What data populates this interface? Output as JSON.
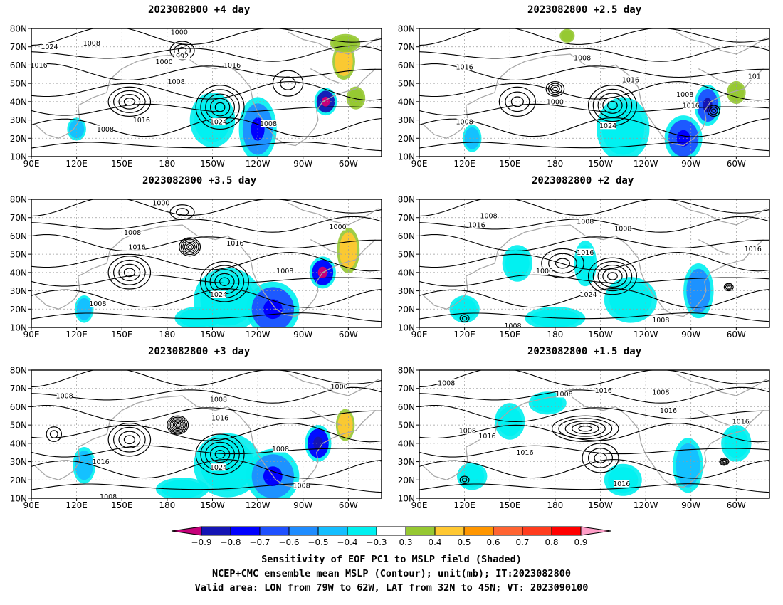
{
  "panels": [
    {
      "title": "2023082800  +4 day",
      "blobs": [
        {
          "lon": 210,
          "lat": 30,
          "rx": 12,
          "ry": 12,
          "v": -0.35
        },
        {
          "lon": 240,
          "lat": 25,
          "rx": 10,
          "ry": 14,
          "v": -0.6
        },
        {
          "lon": 285,
          "lat": 40,
          "rx": 6,
          "ry": 6,
          "v": -0.85
        },
        {
          "lon": 297,
          "lat": 62,
          "rx": 6,
          "ry": 8,
          "v": 0.45
        },
        {
          "lon": 298,
          "lat": 72,
          "rx": 8,
          "ry": 4,
          "v": 0.35
        },
        {
          "lon": 120,
          "lat": 25,
          "rx": 5,
          "ry": 5,
          "v": -0.45
        },
        {
          "lon": 305,
          "lat": 42,
          "rx": 5,
          "ry": 5,
          "v": 0.35
        }
      ],
      "centers": [
        {
          "lon": 155,
          "lat": 40,
          "rx": 14,
          "ry": 8,
          "n": 4
        },
        {
          "lon": 215,
          "lat": 37,
          "rx": 16,
          "ry": 12,
          "n": 5
        },
        {
          "lon": 190,
          "lat": 68,
          "rx": 8,
          "ry": 5,
          "n": 3
        },
        {
          "lon": 260,
          "lat": 50,
          "rx": 10,
          "ry": 7,
          "n": 2
        }
      ],
      "labels": [
        {
          "text": "1000",
          "lon": 188,
          "lat": 78
        },
        {
          "text": "1024",
          "lon": 102,
          "lat": 70
        },
        {
          "text": "1008",
          "lon": 130,
          "lat": 72
        },
        {
          "text": "1016",
          "lon": 95,
          "lat": 60
        },
        {
          "text": "1000",
          "lon": 178,
          "lat": 62
        },
        {
          "text": "992",
          "lon": 190,
          "lat": 65
        },
        {
          "text": "1008",
          "lon": 186,
          "lat": 51
        },
        {
          "text": "1016",
          "lon": 223,
          "lat": 60
        },
        {
          "text": "1016",
          "lon": 163,
          "lat": 30
        },
        {
          "text": "1024",
          "lon": 214,
          "lat": 29
        },
        {
          "text": "1008",
          "lon": 247,
          "lat": 28
        },
        {
          "text": "1008",
          "lon": 139,
          "lat": 25
        }
      ]
    },
    {
      "title": "2023082800  +2.5 day",
      "blobs": [
        {
          "lon": 225,
          "lat": 25,
          "rx": 14,
          "ry": 14,
          "v": -0.4
        },
        {
          "lon": 265,
          "lat": 20,
          "rx": 10,
          "ry": 10,
          "v": -0.65
        },
        {
          "lon": 281,
          "lat": 38,
          "rx": 7,
          "ry": 9,
          "v": -0.7
        },
        {
          "lon": 300,
          "lat": 45,
          "rx": 5,
          "ry": 5,
          "v": 0.35
        },
        {
          "lon": 125,
          "lat": 20,
          "rx": 5,
          "ry": 6,
          "v": -0.45
        },
        {
          "lon": 188,
          "lat": 76,
          "rx": 4,
          "ry": 3,
          "v": 0.35
        }
      ],
      "centers": [
        {
          "lon": 218,
          "lat": 38,
          "rx": 16,
          "ry": 11,
          "n": 5
        },
        {
          "lon": 180,
          "lat": 47,
          "rx": 6,
          "ry": 4,
          "n": 4
        },
        {
          "lon": 155,
          "lat": 40,
          "rx": 12,
          "ry": 8,
          "n": 3
        },
        {
          "lon": 285,
          "lat": 35,
          "rx": 4,
          "ry": 3,
          "n": 3
        }
      ],
      "labels": [
        {
          "text": "1008",
          "lon": 198,
          "lat": 64
        },
        {
          "text": "1016",
          "lon": 120,
          "lat": 59
        },
        {
          "text": "1016",
          "lon": 230,
          "lat": 52
        },
        {
          "text": "1000",
          "lon": 180,
          "lat": 40
        },
        {
          "text": "1008",
          "lon": 266,
          "lat": 44
        },
        {
          "text": "1016",
          "lon": 270,
          "lat": 38
        },
        {
          "text": "1008",
          "lon": 120,
          "lat": 29
        },
        {
          "text": "1024",
          "lon": 215,
          "lat": 27
        },
        {
          "text": "101",
          "lon": 312,
          "lat": 54
        }
      ]
    },
    {
      "title": "2023082800  +3.5 day",
      "blobs": [
        {
          "lon": 220,
          "lat": 25,
          "rx": 18,
          "ry": 14,
          "v": -0.4
        },
        {
          "lon": 250,
          "lat": 20,
          "rx": 14,
          "ry": 12,
          "v": -0.65
        },
        {
          "lon": 283,
          "lat": 40,
          "rx": 7,
          "ry": 7,
          "v": -0.8
        },
        {
          "lon": 300,
          "lat": 52,
          "rx": 6,
          "ry": 10,
          "v": 0.45
        },
        {
          "lon": 125,
          "lat": 20,
          "rx": 5,
          "ry": 6,
          "v": -0.45
        },
        {
          "lon": 200,
          "lat": 15,
          "rx": 12,
          "ry": 5,
          "v": -0.35
        }
      ],
      "centers": [
        {
          "lon": 155,
          "lat": 40,
          "rx": 14,
          "ry": 9,
          "n": 4
        },
        {
          "lon": 218,
          "lat": 35,
          "rx": 16,
          "ry": 11,
          "n": 5
        },
        {
          "lon": 195,
          "lat": 54,
          "rx": 7,
          "ry": 5,
          "n": 6
        },
        {
          "lon": 190,
          "lat": 73,
          "rx": 8,
          "ry": 4,
          "n": 2
        }
      ],
      "labels": [
        {
          "text": "1000",
          "lon": 176,
          "lat": 78
        },
        {
          "text": "1008",
          "lon": 157,
          "lat": 62
        },
        {
          "text": "1016",
          "lon": 160,
          "lat": 54
        },
        {
          "text": "1016",
          "lon": 225,
          "lat": 56
        },
        {
          "text": "1000",
          "lon": 293,
          "lat": 65
        },
        {
          "text": "1008",
          "lon": 258,
          "lat": 41
        },
        {
          "text": "1024",
          "lon": 214,
          "lat": 28
        },
        {
          "text": "1008",
          "lon": 134,
          "lat": 23
        }
      ]
    },
    {
      "title": "2023082800  +2 day",
      "blobs": [
        {
          "lon": 155,
          "lat": 45,
          "rx": 8,
          "ry": 8,
          "v": -0.4
        },
        {
          "lon": 200,
          "lat": 45,
          "rx": 6,
          "ry": 10,
          "v": -0.35
        },
        {
          "lon": 230,
          "lat": 25,
          "rx": 14,
          "ry": 10,
          "v": -0.4
        },
        {
          "lon": 275,
          "lat": 30,
          "rx": 8,
          "ry": 12,
          "v": -0.55
        },
        {
          "lon": 120,
          "lat": 20,
          "rx": 8,
          "ry": 6,
          "v": -0.35
        },
        {
          "lon": 180,
          "lat": 15,
          "rx": 16,
          "ry": 5,
          "v": -0.35
        }
      ],
      "centers": [
        {
          "lon": 218,
          "lat": 38,
          "rx": 16,
          "ry": 10,
          "n": 5
        },
        {
          "lon": 185,
          "lat": 45,
          "rx": 14,
          "ry": 8,
          "n": 3
        },
        {
          "lon": 295,
          "lat": 32,
          "rx": 3,
          "ry": 2,
          "n": 3
        },
        {
          "lon": 120,
          "lat": 15,
          "rx": 3,
          "ry": 2,
          "n": 2
        }
      ],
      "labels": [
        {
          "text": "1008",
          "lon": 136,
          "lat": 71
        },
        {
          "text": "1016",
          "lon": 128,
          "lat": 66
        },
        {
          "text": "1008",
          "lon": 200,
          "lat": 68
        },
        {
          "text": "1008",
          "lon": 225,
          "lat": 64
        },
        {
          "text": "1016",
          "lon": 200,
          "lat": 51
        },
        {
          "text": "1000",
          "lon": 173,
          "lat": 41
        },
        {
          "text": "1016",
          "lon": 311,
          "lat": 53
        },
        {
          "text": "1024",
          "lon": 202,
          "lat": 28
        },
        {
          "text": "1008",
          "lon": 152,
          "lat": 11
        },
        {
          "text": "1008",
          "lon": 250,
          "lat": 14
        }
      ]
    },
    {
      "title": "2023082800  +3 day",
      "blobs": [
        {
          "lon": 220,
          "lat": 28,
          "rx": 18,
          "ry": 14,
          "v": -0.4
        },
        {
          "lon": 250,
          "lat": 22,
          "rx": 14,
          "ry": 12,
          "v": -0.6
        },
        {
          "lon": 280,
          "lat": 40,
          "rx": 7,
          "ry": 8,
          "v": -0.75
        },
        {
          "lon": 298,
          "lat": 50,
          "rx": 5,
          "ry": 7,
          "v": 0.45
        },
        {
          "lon": 125,
          "lat": 28,
          "rx": 6,
          "ry": 8,
          "v": -0.5
        },
        {
          "lon": 190,
          "lat": 15,
          "rx": 14,
          "ry": 5,
          "v": -0.35
        }
      ],
      "centers": [
        {
          "lon": 155,
          "lat": 42,
          "rx": 14,
          "ry": 9,
          "n": 4
        },
        {
          "lon": 215,
          "lat": 34,
          "rx": 16,
          "ry": 11,
          "n": 5
        },
        {
          "lon": 187,
          "lat": 50,
          "rx": 7,
          "ry": 5,
          "n": 7
        },
        {
          "lon": 105,
          "lat": 45,
          "rx": 5,
          "ry": 4,
          "n": 2
        }
      ],
      "labels": [
        {
          "text": "1008",
          "lon": 112,
          "lat": 66
        },
        {
          "text": "1008",
          "lon": 214,
          "lat": 64
        },
        {
          "text": "1016",
          "lon": 215,
          "lat": 54
        },
        {
          "text": "1000",
          "lon": 294,
          "lat": 71
        },
        {
          "text": "1008",
          "lon": 255,
          "lat": 37
        },
        {
          "text": "1016",
          "lon": 136,
          "lat": 30
        },
        {
          "text": "1024",
          "lon": 214,
          "lat": 27
        },
        {
          "text": "1008",
          "lon": 269,
          "lat": 17
        },
        {
          "text": "1008",
          "lon": 141,
          "lat": 11
        }
      ]
    },
    {
      "title": "2023082800  +1.5 day",
      "blobs": [
        {
          "lon": 150,
          "lat": 52,
          "rx": 8,
          "ry": 8,
          "v": -0.35
        },
        {
          "lon": 225,
          "lat": 20,
          "rx": 10,
          "ry": 7,
          "v": -0.35
        },
        {
          "lon": 268,
          "lat": 28,
          "rx": 8,
          "ry": 12,
          "v": -0.45
        },
        {
          "lon": 300,
          "lat": 40,
          "rx": 8,
          "ry": 8,
          "v": -0.4
        },
        {
          "lon": 125,
          "lat": 22,
          "rx": 8,
          "ry": 6,
          "v": -0.35
        },
        {
          "lon": 175,
          "lat": 62,
          "rx": 10,
          "ry": 5,
          "v": -0.35
        }
      ],
      "centers": [
        {
          "lon": 200,
          "lat": 48,
          "rx": 22,
          "ry": 7,
          "n": 5
        },
        {
          "lon": 210,
          "lat": 32,
          "rx": 12,
          "ry": 8,
          "n": 3
        },
        {
          "lon": 292,
          "lat": 30,
          "rx": 3,
          "ry": 2,
          "n": 4
        },
        {
          "lon": 120,
          "lat": 20,
          "rx": 3,
          "ry": 2,
          "n": 2
        }
      ],
      "labels": [
        {
          "text": "1008",
          "lon": 108,
          "lat": 73
        },
        {
          "text": "1008",
          "lon": 186,
          "lat": 67
        },
        {
          "text": "1016",
          "lon": 212,
          "lat": 69
        },
        {
          "text": "1008",
          "lon": 250,
          "lat": 68
        },
        {
          "text": "1016",
          "lon": 255,
          "lat": 58
        },
        {
          "text": "1016",
          "lon": 303,
          "lat": 52
        },
        {
          "text": "1008",
          "lon": 122,
          "lat": 47
        },
        {
          "text": "1016",
          "lon": 135,
          "lat": 44
        },
        {
          "text": "1016",
          "lon": 160,
          "lat": 35
        },
        {
          "text": "1016",
          "lon": 224,
          "lat": 18
        }
      ]
    }
  ],
  "axes": {
    "lat_labels": [
      "80N",
      "70N",
      "60N",
      "50N",
      "40N",
      "30N",
      "20N",
      "10N"
    ],
    "lon_labels": [
      "90E",
      "120E",
      "150E",
      "180",
      "150W",
      "120W",
      "90W",
      "60W"
    ],
    "lon_values": [
      90,
      120,
      150,
      180,
      210,
      240,
      270,
      300
    ],
    "lat_range": [
      10,
      80
    ],
    "lon_range": [
      90,
      322
    ]
  },
  "colorbar": {
    "ticks": [
      "−0.9",
      "−0.8",
      "−0.7",
      "−0.6",
      "−0.5",
      "−0.4",
      "−0.3",
      "0.3",
      "0.4",
      "0.5",
      "0.6",
      "0.7",
      "0.8",
      "0.9"
    ],
    "colors": [
      "#c6007a",
      "#1414b4",
      "#0000ff",
      "#1e50ff",
      "#1e8cff",
      "#14beff",
      "#00f0f0",
      "#ffffff",
      "#96c832",
      "#ffc832",
      "#ff9600",
      "#ff6432",
      "#ff3c1e",
      "#ff0000",
      "#ff9ec8"
    ]
  },
  "caption": {
    "line1": "Sensitivity of EOF PC1 to MSLP field (Shaded)",
    "line2": "NCEP+CMC ensemble mean MSLP (Contour); unit(mb); IT:2023082800",
    "line3": "Valid area: LON from 79W to 62W, LAT from 32N to 45N; VT: 2023090100"
  }
}
